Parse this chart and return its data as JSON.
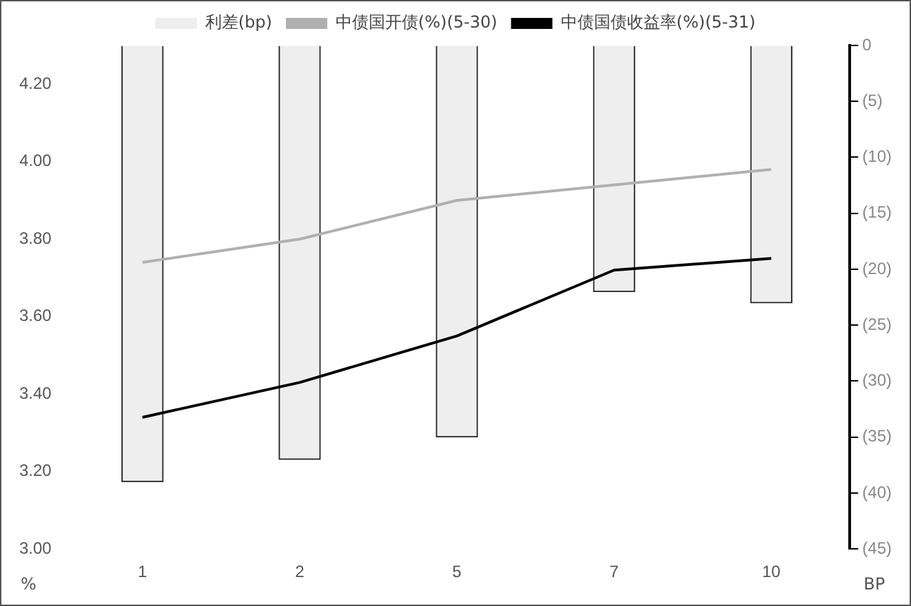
{
  "chart_data": {
    "type": "bar",
    "categories": [
      "1",
      "2",
      "5",
      "7",
      "10"
    ],
    "series": [
      {
        "name": "利差(bp)",
        "axis": "y2",
        "color": "#eeeeee",
        "values": [
          -39,
          -37,
          -35,
          -22,
          -23
        ]
      },
      {
        "name": "中债国开债(%)(5-30)",
        "type": "line",
        "axis": "y",
        "color": "#b0b0b0",
        "values": [
          3.74,
          3.8,
          3.9,
          3.94,
          3.98
        ]
      },
      {
        "name": "中债国债收益率(%)(5-31)",
        "type": "line",
        "axis": "y",
        "color": "#000000",
        "values": [
          3.34,
          3.43,
          3.55,
          3.72,
          3.75
        ]
      }
    ],
    "ylabel": "%",
    "y2label": "BP",
    "ylim": [
      3.0,
      4.3
    ],
    "yticks": [
      {
        "value": 3.0,
        "label": "3.00"
      },
      {
        "value": 3.2,
        "label": "3.20"
      },
      {
        "value": 3.4,
        "label": "3.40"
      },
      {
        "value": 3.6,
        "label": "3.60"
      },
      {
        "value": 3.8,
        "label": "3.80"
      },
      {
        "value": 4.0,
        "label": "4.00"
      },
      {
        "value": 4.2,
        "label": "4.20"
      }
    ],
    "y2lim": [
      -45,
      0
    ],
    "y2ticks": [
      {
        "value": -45,
        "label": "(45)"
      },
      {
        "value": -40,
        "label": "(40)"
      },
      {
        "value": -35,
        "label": "(35)"
      },
      {
        "value": -30,
        "label": "(30)"
      },
      {
        "value": -25,
        "label": "(25)"
      },
      {
        "value": -20,
        "label": "(20)"
      },
      {
        "value": -15,
        "label": "(15)"
      },
      {
        "value": -10,
        "label": "(10)"
      },
      {
        "value": -5,
        "label": "(5)"
      },
      0
    ],
    "grid": false,
    "legend": "top",
    "marker": "none",
    "line_style": "solid"
  }
}
